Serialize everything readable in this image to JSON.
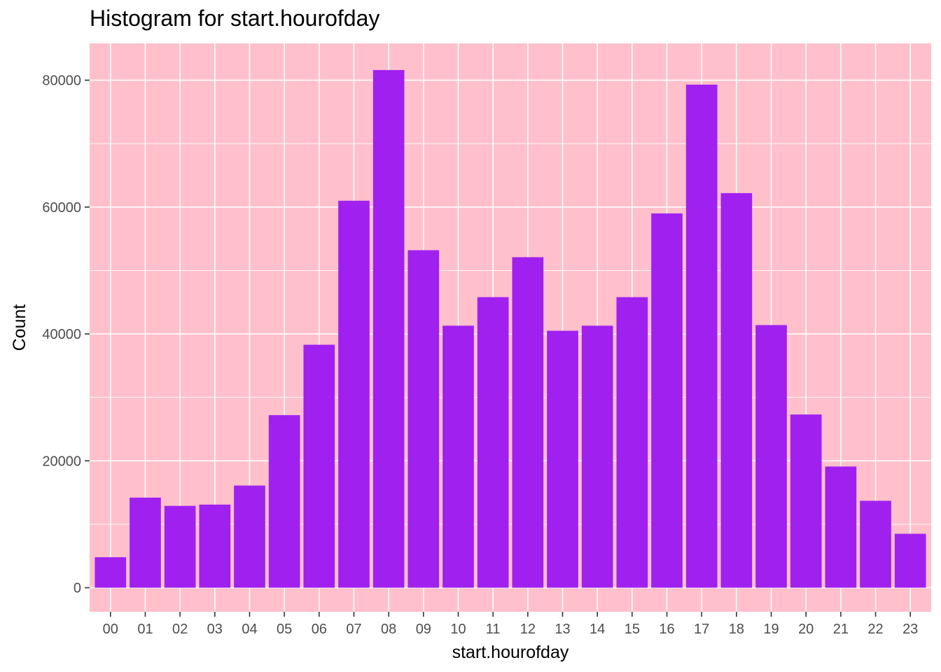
{
  "chart_data": {
    "type": "bar",
    "title": "Histogram for start.hourofday",
    "xlabel": "start.hourofday",
    "ylabel": "Count",
    "categories": [
      "00",
      "01",
      "02",
      "03",
      "04",
      "05",
      "06",
      "07",
      "08",
      "09",
      "10",
      "11",
      "12",
      "13",
      "14",
      "15",
      "16",
      "17",
      "18",
      "19",
      "20",
      "21",
      "22",
      "23"
    ],
    "values": [
      4800,
      14200,
      12900,
      13100,
      16100,
      27200,
      38300,
      61000,
      81600,
      53200,
      41300,
      45800,
      52100,
      40500,
      41300,
      45800,
      59000,
      79300,
      62200,
      41400,
      27300,
      19100,
      13700,
      8500
    ],
    "ylim": [
      -3800,
      85800
    ],
    "yticks": [
      0,
      20000,
      40000,
      60000,
      80000
    ],
    "ytick_labels": [
      "0",
      "20000",
      "40000",
      "60000",
      "80000"
    ],
    "grid": true,
    "colors": {
      "bar": "#a020f0",
      "panel_background": "#ffc0cb",
      "grid": "#ffffff"
    }
  }
}
